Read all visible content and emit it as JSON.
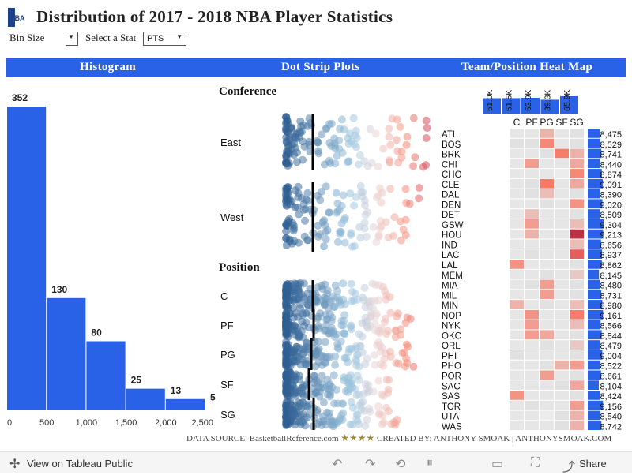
{
  "title": "Distribution of 2017 - 2018 NBA Player Statistics",
  "logo_text": "NBA",
  "controls": {
    "bin_size_label": "Bin Size",
    "select_stat_label": "Select a Stat",
    "select_stat_value": "PTS"
  },
  "sections": {
    "histogram": "Histogram",
    "dot_strip": "Dot Strip Plots",
    "heat_map": "Team/Position Heat Map"
  },
  "footer": {
    "source": "DATA SOURCE: BasketballReference.com",
    "stars": "★★★★",
    "credit": "CREATED BY: ANTHONY SMOAK | ANTHONYSMOAK.COM"
  },
  "toolbar": {
    "view_public": "View on Tableau Public",
    "share": "Share"
  },
  "colors": {
    "accent": "#2962e7",
    "dots_low": "#2e5e91",
    "dots_high": "#c7304f"
  },
  "chart_data": [
    {
      "type": "bar",
      "title": "Histogram",
      "bin_edges": [
        0,
        500,
        1000,
        1500,
        2000,
        2500
      ],
      "x_tick_labels": [
        "0",
        "500",
        "1,000",
        "1,500",
        "2,000",
        "2,500"
      ],
      "values": [
        352,
        130,
        80,
        25,
        13,
        5
      ],
      "value_labels": [
        "352",
        "130",
        "80",
        "25",
        "13",
        "5"
      ],
      "xlim": [
        0,
        2500
      ]
    },
    {
      "type": "scatter",
      "title": "Dot Strip Plots",
      "group_titles": [
        "Conference",
        "Position"
      ],
      "groups": [
        {
          "group": "Conference",
          "label": "East",
          "max_spread": 0.95
        },
        {
          "group": "Conference",
          "label": "West",
          "max_spread": 0.9
        },
        {
          "group": "Position",
          "label": "C",
          "max_spread": 0.7
        },
        {
          "group": "Position",
          "label": "PF",
          "max_spread": 0.85
        },
        {
          "group": "Position",
          "label": "PG",
          "max_spread": 0.85
        },
        {
          "group": "Position",
          "label": "SF",
          "max_spread": 0.72
        },
        {
          "group": "Position",
          "label": "SG",
          "max_spread": 0.75
        }
      ]
    },
    {
      "type": "heatmap",
      "title": "Team/Position Heat Map",
      "columns": [
        "C",
        "PF",
        "PG",
        "SF",
        "SG"
      ],
      "column_totals": [
        "51.0K",
        "51.5K",
        "53.9K",
        "39.3K",
        "65.9K"
      ],
      "column_total_values": [
        51.0,
        51.5,
        53.9,
        39.3,
        65.9
      ],
      "rows": [
        "ATL",
        "BOS",
        "BRK",
        "CHI",
        "CHO",
        "CLE",
        "DAL",
        "DEN",
        "DET",
        "GSW",
        "HOU",
        "IND",
        "LAC",
        "LAL",
        "MEM",
        "MIA",
        "MIL",
        "MIN",
        "NOP",
        "NYK",
        "OKC",
        "ORL",
        "PHI",
        "PHO",
        "POR",
        "SAC",
        "SAS",
        "TOR",
        "UTA",
        "WAS"
      ],
      "row_totals": [
        "8,475",
        "8,529",
        "8,741",
        "8,440",
        "8,874",
        "9,091",
        "8,390",
        "9,020",
        "8,509",
        "9,304",
        "9,213",
        "8,656",
        "8,937",
        "8,862",
        "8,145",
        "8,480",
        "8,731",
        "8,980",
        "9,161",
        "8,566",
        "8,844",
        "8,479",
        "9,004",
        "8,522",
        "8,661",
        "8,104",
        "8,424",
        "9,156",
        "8,540",
        "8,742"
      ],
      "row_total_values": [
        8475,
        8529,
        8741,
        8440,
        8874,
        9091,
        8390,
        9020,
        8509,
        9304,
        9213,
        8656,
        8937,
        8862,
        8145,
        8480,
        8731,
        8980,
        9161,
        8566,
        8844,
        8479,
        9004,
        8522,
        8661,
        8104,
        8424,
        9156,
        8540,
        8742
      ],
      "intensity": [
        [
          0.15,
          0.15,
          0.35,
          0.15,
          0.2
        ],
        [
          0.2,
          0.2,
          0.55,
          0.15,
          0.2
        ],
        [
          0.15,
          0.15,
          0.2,
          0.6,
          0.35
        ],
        [
          0.15,
          0.45,
          0.15,
          0.15,
          0.4
        ],
        [
          0.15,
          0.15,
          0.15,
          0.1,
          0.55
        ],
        [
          0.15,
          0.2,
          0.62,
          0.15,
          0.4
        ],
        [
          0.15,
          0.2,
          0.3,
          0.15,
          0.2
        ],
        [
          0.15,
          0.15,
          0.2,
          0.15,
          0.5
        ],
        [
          0.15,
          0.3,
          0.15,
          0.15,
          0.2
        ],
        [
          0.15,
          0.45,
          0.15,
          0.15,
          0.3
        ],
        [
          0.15,
          0.35,
          0.15,
          0.15,
          0.9
        ],
        [
          0.15,
          0.15,
          0.15,
          0.15,
          0.3
        ],
        [
          0.15,
          0.2,
          0.15,
          0.15,
          0.72
        ],
        [
          0.5,
          0.15,
          0.15,
          0.15,
          0.2
        ],
        [
          0.15,
          0.15,
          0.2,
          0.15,
          0.25
        ],
        [
          0.15,
          0.2,
          0.45,
          0.15,
          0.2
        ],
        [
          0.15,
          0.15,
          0.45,
          0.15,
          0.2
        ],
        [
          0.35,
          0.15,
          0.2,
          0.15,
          0.3
        ],
        [
          0.15,
          0.5,
          0.15,
          0.15,
          0.6
        ],
        [
          0.15,
          0.45,
          0.15,
          0.15,
          0.3
        ],
        [
          0.15,
          0.45,
          0.4,
          0.15,
          0.2
        ],
        [
          0.15,
          0.15,
          0.2,
          0.15,
          0.25
        ],
        [
          0.2,
          0.15,
          0.15,
          0.15,
          0.2
        ],
        [
          0.15,
          0.15,
          0.2,
          0.35,
          0.45
        ],
        [
          0.15,
          0.15,
          0.45,
          0.15,
          0.2
        ],
        [
          0.15,
          0.15,
          0.15,
          0.2,
          0.4
        ],
        [
          0.5,
          0.15,
          0.15,
          0.15,
          0.2
        ],
        [
          0.15,
          0.2,
          0.15,
          0.15,
          0.45
        ],
        [
          0.15,
          0.15,
          0.1,
          0.2,
          0.35
        ],
        [
          0.15,
          0.15,
          0.15,
          0.2,
          0.35
        ]
      ]
    }
  ]
}
